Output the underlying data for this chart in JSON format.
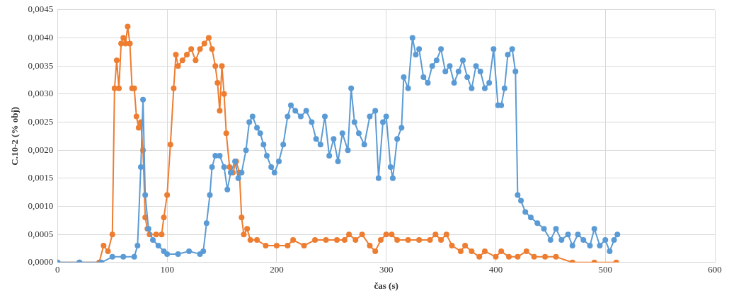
{
  "chart_data": {
    "type": "line",
    "xlabel": "čas (s)",
    "ylabel": "C.10-2 (% obj)",
    "xlim": [
      0,
      600
    ],
    "xticks": [
      0,
      100,
      200,
      300,
      400,
      500,
      600
    ],
    "ylim": [
      0,
      0.0045
    ],
    "yticks": [
      {
        "value": 0,
        "label": "0,0000"
      },
      {
        "value": 0.0005,
        "label": "0,0005"
      },
      {
        "value": 0.001,
        "label": "0,0010"
      },
      {
        "value": 0.0015,
        "label": "0,0015"
      },
      {
        "value": 0.002,
        "label": "0,0020"
      },
      {
        "value": 0.0025,
        "label": "0,0025"
      },
      {
        "value": 0.003,
        "label": "0,0030"
      },
      {
        "value": 0.0035,
        "label": "0,0035"
      },
      {
        "value": 0.004,
        "label": "0,0040"
      },
      {
        "value": 0.0045,
        "label": "0,0045"
      }
    ],
    "grid": true,
    "legend": false,
    "marker": "circle",
    "line_style": "solid",
    "series": [
      {
        "color": "#5b9bd5",
        "x": [
          0,
          20,
          40,
          50,
          60,
          70,
          73,
          76,
          78,
          80,
          83,
          87,
          92,
          97,
          100,
          110,
          120,
          130,
          133,
          136,
          139,
          141,
          144,
          148,
          152,
          155,
          158,
          162,
          165,
          168,
          172,
          175,
          178,
          182,
          185,
          188,
          191,
          195,
          198,
          202,
          206,
          210,
          213,
          217,
          222,
          227,
          232,
          236,
          240,
          244,
          248,
          252,
          256,
          260,
          265,
          268,
          271,
          275,
          280,
          285,
          290,
          293,
          297,
          300,
          304,
          306,
          310,
          314,
          316,
          320,
          324,
          327,
          330,
          334,
          338,
          342,
          346,
          350,
          354,
          358,
          362,
          366,
          370,
          374,
          378,
          382,
          386,
          390,
          394,
          398,
          402,
          405,
          408,
          411,
          415,
          418,
          420,
          423,
          427,
          432,
          438,
          444,
          450,
          455,
          460,
          466,
          470,
          475,
          480,
          486,
          490,
          495,
          500,
          504,
          508,
          511
        ],
        "values": [
          0,
          0,
          0,
          0.0001,
          0.0001,
          0.0001,
          0.0003,
          0.0017,
          0.0029,
          0.0012,
          0.0006,
          0.0004,
          0.0003,
          0.0002,
          0.00015,
          0.00015,
          0.0002,
          0.00015,
          0.0002,
          0.0007,
          0.0012,
          0.0017,
          0.0019,
          0.0019,
          0.0017,
          0.0013,
          0.0016,
          0.0018,
          0.0015,
          0.0016,
          0.002,
          0.0025,
          0.0026,
          0.0024,
          0.0023,
          0.0021,
          0.0019,
          0.0017,
          0.0016,
          0.0018,
          0.0021,
          0.0026,
          0.0028,
          0.0027,
          0.0026,
          0.0027,
          0.0025,
          0.0022,
          0.0021,
          0.0026,
          0.0019,
          0.0022,
          0.0018,
          0.0023,
          0.002,
          0.0031,
          0.0025,
          0.0023,
          0.0021,
          0.0026,
          0.0027,
          0.0015,
          0.0025,
          0.0026,
          0.0017,
          0.0015,
          0.0022,
          0.0024,
          0.0033,
          0.0031,
          0.004,
          0.0037,
          0.0038,
          0.0033,
          0.0032,
          0.0035,
          0.0036,
          0.0038,
          0.0034,
          0.0035,
          0.0032,
          0.0034,
          0.0036,
          0.0033,
          0.0031,
          0.0035,
          0.0034,
          0.0031,
          0.0032,
          0.0038,
          0.0028,
          0.0028,
          0.0031,
          0.0037,
          0.0038,
          0.0034,
          0.0012,
          0.0011,
          0.0009,
          0.0008,
          0.0007,
          0.0006,
          0.0004,
          0.0006,
          0.0004,
          0.0005,
          0.0003,
          0.0005,
          0.0004,
          0.0003,
          0.0006,
          0.0003,
          0.0004,
          0.0002,
          0.0004,
          0.0005
        ]
      },
      {
        "color": "#ed7d31",
        "x": [
          0,
          20,
          38,
          42,
          46,
          50,
          52,
          54,
          56,
          58,
          60,
          62,
          64,
          66,
          68,
          70,
          72,
          74,
          76,
          78,
          80,
          82,
          84,
          90,
          95,
          97,
          100,
          103,
          106,
          108,
          110,
          114,
          118,
          122,
          126,
          130,
          134,
          138,
          141,
          144,
          146,
          148,
          150,
          152,
          154,
          157,
          160,
          163,
          166,
          168,
          170,
          173,
          176,
          182,
          190,
          200,
          210,
          215,
          225,
          235,
          245,
          255,
          262,
          266,
          272,
          278,
          285,
          290,
          295,
          300,
          305,
          310,
          320,
          330,
          340,
          345,
          350,
          355,
          360,
          368,
          372,
          378,
          385,
          390,
          400,
          405,
          412,
          420,
          428,
          435,
          445,
          455,
          470,
          490,
          510
        ],
        "values": [
          0,
          0,
          0,
          0.0003,
          0.0002,
          0.0005,
          0.0031,
          0.0036,
          0.0031,
          0.0039,
          0.004,
          0.0039,
          0.0042,
          0.0039,
          0.0031,
          0.0031,
          0.0026,
          0.0024,
          0.0025,
          0.002,
          0.0008,
          0.0006,
          0.0005,
          0.0005,
          0.0005,
          0.0008,
          0.0012,
          0.0021,
          0.0031,
          0.0037,
          0.0035,
          0.0036,
          0.0037,
          0.0038,
          0.0036,
          0.0038,
          0.0039,
          0.004,
          0.0038,
          0.0035,
          0.0032,
          0.0027,
          0.0035,
          0.003,
          0.0023,
          0.0017,
          0.0016,
          0.0018,
          0.0016,
          0.0008,
          0.0005,
          0.0006,
          0.0004,
          0.0004,
          0.0003,
          0.0003,
          0.0003,
          0.0004,
          0.0003,
          0.0004,
          0.0004,
          0.0004,
          0.0004,
          0.0005,
          0.0004,
          0.0005,
          0.0003,
          0.0002,
          0.0004,
          0.0005,
          0.0005,
          0.0004,
          0.0004,
          0.0004,
          0.0004,
          0.0005,
          0.0004,
          0.0005,
          0.0003,
          0.0002,
          0.0003,
          0.0002,
          0.0001,
          0.0002,
          0.0001,
          0.0002,
          0.0001,
          0.0001,
          0.0002,
          0.0001,
          0.0001,
          0.0001,
          0,
          0,
          0
        ]
      }
    ]
  }
}
